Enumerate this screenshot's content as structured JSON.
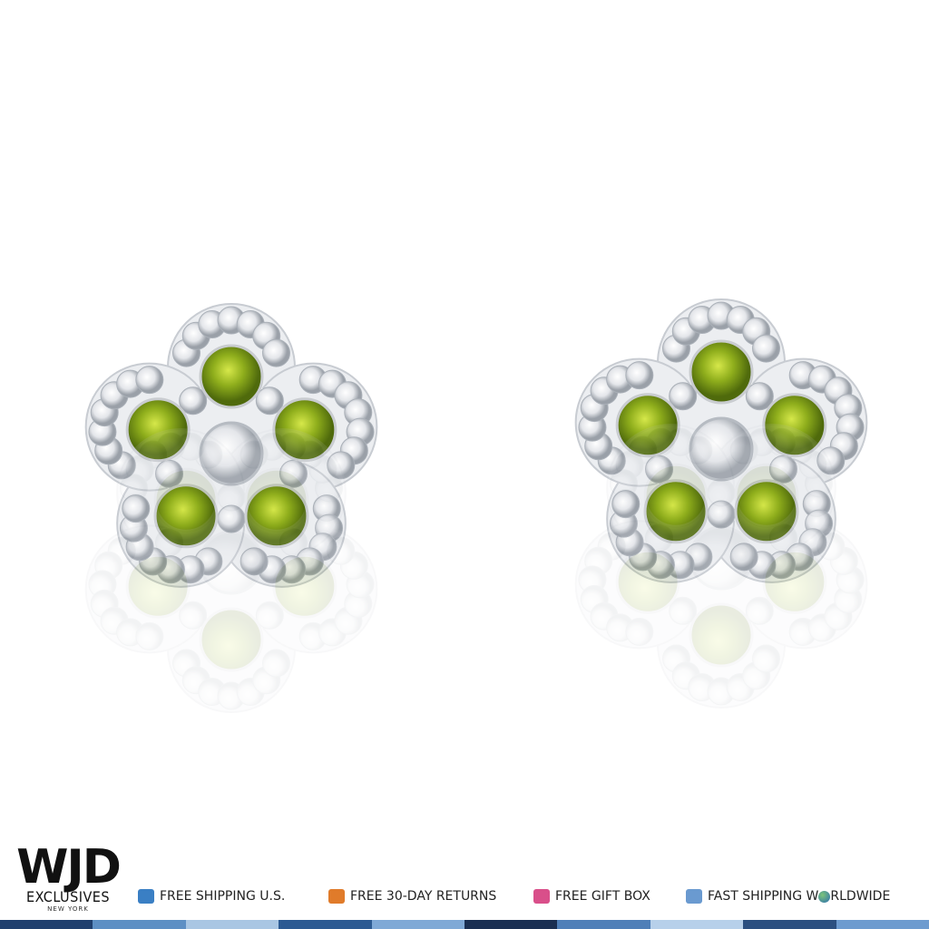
{
  "logo": {
    "mark": "WJD",
    "name": "EXCLUSIVES",
    "place": "NEW YORK"
  },
  "banner": {
    "items": [
      "FREE SHIPPING U.S.",
      "FREE 30-DAY RETURNS",
      "FREE GIFT BOX"
    ],
    "last": {
      "before": "FAST SHIPPING W",
      "after": "RLDWIDE"
    }
  }
}
